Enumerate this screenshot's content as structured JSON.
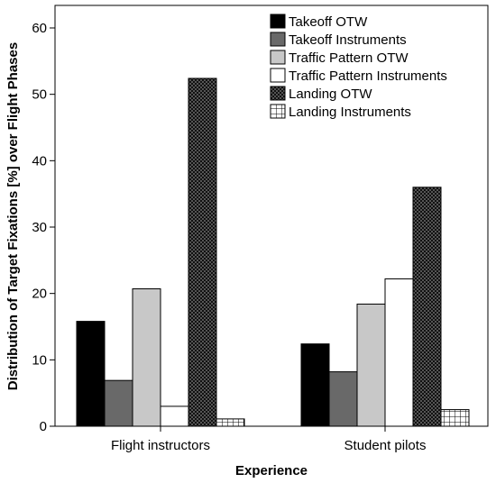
{
  "chart_data": {
    "type": "bar",
    "title": "",
    "xlabel": "Experience",
    "ylabel": "Distribution of Target Fixations [%] over Flight Phases",
    "categories": [
      "Flight instructors",
      "Student pilots"
    ],
    "ylim": [
      0,
      60
    ],
    "yticks": [
      0,
      10,
      20,
      30,
      40,
      50,
      60
    ],
    "grid": false,
    "legend_position": "top-right",
    "series": [
      {
        "name": "Takeoff OTW",
        "values": [
          15.8,
          12.4
        ],
        "fill": "#000000",
        "pattern": "solid"
      },
      {
        "name": "Takeoff Instruments",
        "values": [
          6.9,
          8.2
        ],
        "fill": "#696969",
        "pattern": "solid"
      },
      {
        "name": "Traffic Pattern OTW",
        "values": [
          20.7,
          18.4
        ],
        "fill": "#c8c8c8",
        "pattern": "solid"
      },
      {
        "name": "Traffic Pattern Instruments",
        "values": [
          3.0,
          22.2
        ],
        "fill": "#ffffff",
        "pattern": "solid"
      },
      {
        "name": "Landing OTW",
        "values": [
          52.4,
          36.0
        ],
        "fill": "#3a3a3a",
        "pattern": "dots"
      },
      {
        "name": "Landing Instruments",
        "values": [
          1.1,
          2.5
        ],
        "fill": "#ffffff",
        "pattern": "grid"
      }
    ]
  }
}
